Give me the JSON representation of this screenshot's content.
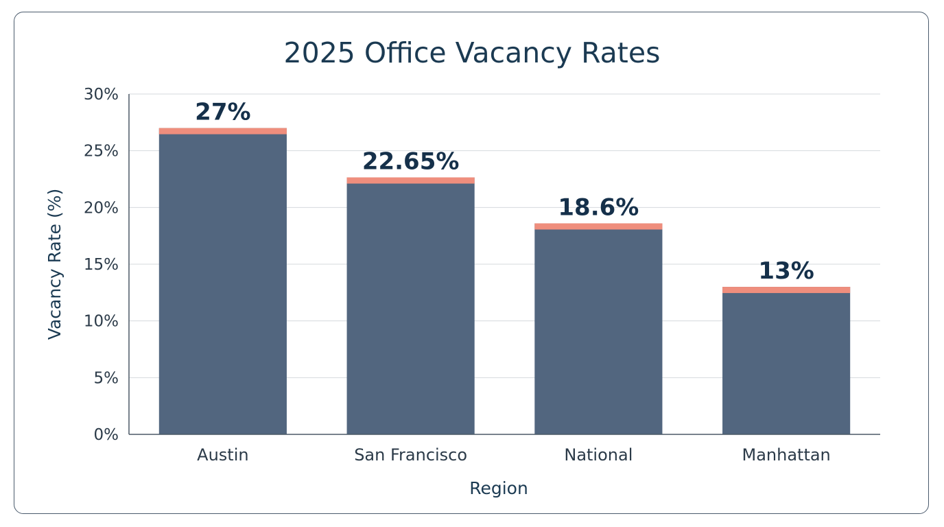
{
  "chart_data": {
    "type": "bar",
    "title": "2025 Office Vacancy Rates",
    "xlabel": "Region",
    "ylabel": "Vacancy Rate (%)",
    "categories": [
      "Austin",
      "San Francisco",
      "National",
      "Manhattan"
    ],
    "values": [
      27,
      22.65,
      18.6,
      13
    ],
    "data_labels": [
      "27%",
      "22.65%",
      "18.6%",
      "13%"
    ],
    "ylim": [
      0,
      30
    ],
    "yticks": [
      0,
      5,
      10,
      15,
      20,
      25,
      30
    ],
    "ytick_labels": [
      "0%",
      "5%",
      "10%",
      "15%",
      "20%",
      "25%",
      "30%"
    ],
    "grid": true,
    "bar_color": "#52667f",
    "accent_color": "#ef8e7d"
  }
}
